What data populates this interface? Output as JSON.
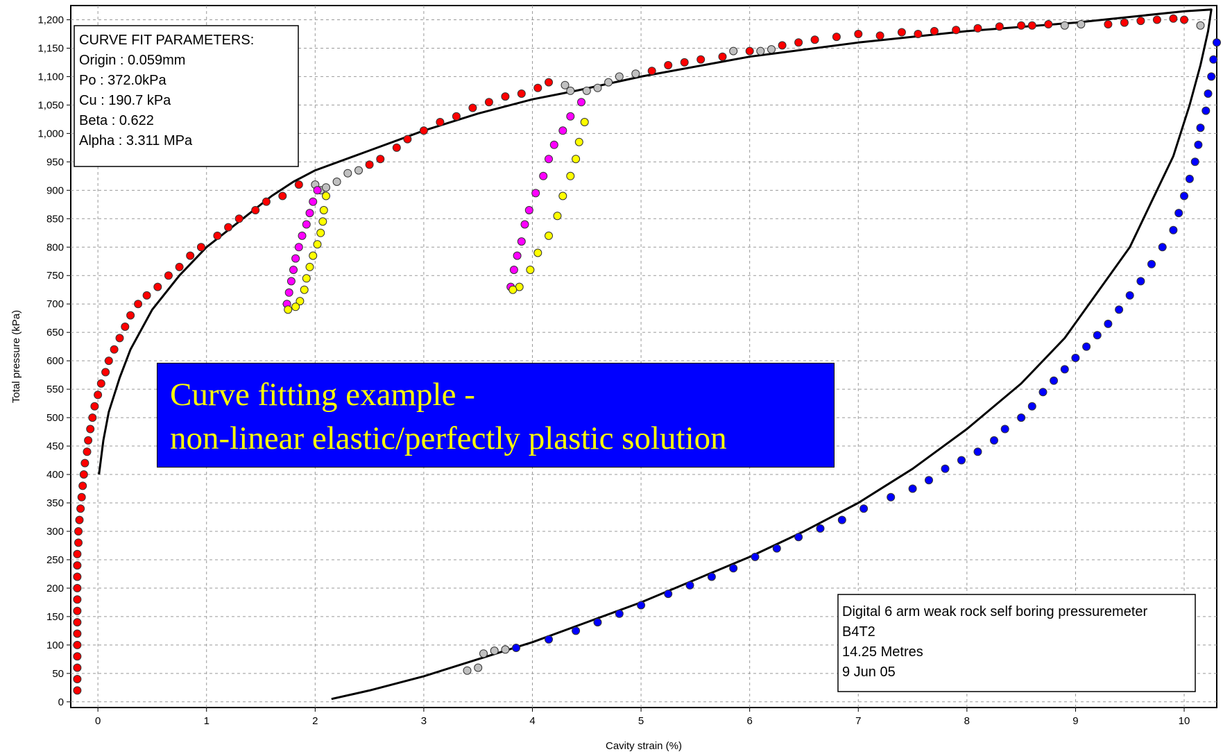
{
  "chart_data": {
    "type": "scatter",
    "title": "",
    "xlabel": "Cavity strain (%)",
    "ylabel": "Total pressure (kPa)",
    "xlim": [
      -0.25,
      10.3
    ],
    "ylim": [
      -10,
      1225
    ],
    "grid": true,
    "x_ticks": [
      0,
      1,
      2,
      3,
      4,
      5,
      6,
      7,
      8,
      9,
      10
    ],
    "y_ticks": [
      0,
      50,
      100,
      150,
      200,
      250,
      300,
      350,
      400,
      450,
      500,
      550,
      600,
      650,
      700,
      750,
      800,
      850,
      900,
      950,
      1000,
      1050,
      1100,
      1150,
      1200
    ],
    "y_tick_labels": [
      "0",
      "50",
      "100",
      "150",
      "200",
      "250",
      "300",
      "350",
      "400",
      "450",
      "500",
      "550",
      "600",
      "650",
      "700",
      "750",
      "800",
      "850",
      "900",
      "950",
      "1,000",
      "1,050",
      "1,100",
      "1,150",
      "1,200"
    ],
    "params_box": {
      "lines": [
        "CURVE FIT PARAMETERS:",
        "Origin : 0.059mm",
        "Po : 372.0kPa",
        "Cu : 190.7 kPa",
        "Beta : 0.622",
        "Alpha : 3.311 MPa"
      ],
      "position": "top-left"
    },
    "info_box": {
      "lines": [
        "Digital 6 arm weak rock self boring pressuremeter",
        "B4T2",
        "14.25 Metres",
        "9 Jun 05"
      ],
      "position": "bottom-right"
    },
    "banner": {
      "lines": [
        "Curve fitting example -",
        "non-linear elastic/perfectly plastic solution"
      ],
      "background": "#0000ff",
      "color": "#ffff00"
    },
    "fit_curve": [
      [
        0.01,
        400
      ],
      [
        0.05,
        460
      ],
      [
        0.1,
        510
      ],
      [
        0.2,
        570
      ],
      [
        0.3,
        620
      ],
      [
        0.5,
        690
      ],
      [
        0.75,
        750
      ],
      [
        1.0,
        800
      ],
      [
        1.3,
        845
      ],
      [
        1.6,
        890
      ],
      [
        1.8,
        915
      ],
      [
        2.0,
        935
      ],
      [
        2.5,
        970
      ],
      [
        3.0,
        1005
      ],
      [
        3.5,
        1035
      ],
      [
        4.0,
        1060
      ],
      [
        4.4,
        1075
      ],
      [
        5.0,
        1100
      ],
      [
        6.0,
        1135
      ],
      [
        7.0,
        1160
      ],
      [
        8.0,
        1180
      ],
      [
        9.0,
        1195
      ],
      [
        10.0,
        1215
      ],
      [
        10.25,
        1218
      ],
      [
        10.22,
        1180
      ],
      [
        10.15,
        1120
      ],
      [
        10.05,
        1050
      ],
      [
        9.9,
        960
      ],
      [
        9.7,
        880
      ],
      [
        9.5,
        800
      ],
      [
        9.2,
        720
      ],
      [
        8.9,
        640
      ],
      [
        8.5,
        560
      ],
      [
        8.0,
        480
      ],
      [
        7.5,
        410
      ],
      [
        7.0,
        350
      ],
      [
        6.5,
        300
      ],
      [
        6.0,
        255
      ],
      [
        5.5,
        215
      ],
      [
        5.0,
        175
      ],
      [
        4.5,
        140
      ],
      [
        4.0,
        105
      ],
      [
        3.5,
        75
      ],
      [
        3.0,
        45
      ],
      [
        2.5,
        20
      ],
      [
        2.15,
        5
      ]
    ],
    "series": [
      {
        "name": "",
        "color": "#ff0000",
        "points": [
          [
            -0.19,
            20
          ],
          [
            -0.19,
            40
          ],
          [
            -0.19,
            60
          ],
          [
            -0.19,
            80
          ],
          [
            -0.19,
            100
          ],
          [
            -0.19,
            120
          ],
          [
            -0.19,
            140
          ],
          [
            -0.19,
            160
          ],
          [
            -0.19,
            180
          ],
          [
            -0.19,
            200
          ],
          [
            -0.19,
            220
          ],
          [
            -0.19,
            240
          ],
          [
            -0.19,
            260
          ],
          [
            -0.18,
            280
          ],
          [
            -0.18,
            300
          ],
          [
            -0.17,
            320
          ],
          [
            -0.16,
            340
          ],
          [
            -0.15,
            360
          ],
          [
            -0.14,
            380
          ],
          [
            -0.13,
            400
          ],
          [
            -0.12,
            420
          ],
          [
            -0.1,
            440
          ],
          [
            -0.09,
            460
          ],
          [
            -0.07,
            480
          ],
          [
            -0.05,
            500
          ],
          [
            -0.03,
            520
          ],
          [
            0.0,
            540
          ],
          [
            0.03,
            560
          ],
          [
            0.07,
            580
          ],
          [
            0.1,
            600
          ],
          [
            0.15,
            620
          ],
          [
            0.2,
            640
          ],
          [
            0.25,
            660
          ],
          [
            0.3,
            680
          ],
          [
            0.37,
            700
          ],
          [
            0.45,
            715
          ],
          [
            0.55,
            730
          ],
          [
            0.65,
            750
          ],
          [
            0.75,
            765
          ],
          [
            0.85,
            785
          ],
          [
            0.95,
            800
          ],
          [
            1.1,
            820
          ],
          [
            1.2,
            835
          ],
          [
            1.3,
            850
          ],
          [
            1.45,
            865
          ],
          [
            1.55,
            880
          ],
          [
            1.7,
            890
          ],
          [
            1.85,
            910
          ],
          [
            2.5,
            945
          ],
          [
            2.6,
            955
          ],
          [
            2.75,
            975
          ],
          [
            2.85,
            990
          ],
          [
            3.0,
            1005
          ],
          [
            3.15,
            1020
          ],
          [
            3.3,
            1030
          ],
          [
            3.45,
            1045
          ],
          [
            3.6,
            1055
          ],
          [
            3.75,
            1065
          ],
          [
            3.9,
            1070
          ],
          [
            4.05,
            1080
          ],
          [
            4.15,
            1090
          ],
          [
            5.1,
            1110
          ],
          [
            5.25,
            1120
          ],
          [
            5.4,
            1125
          ],
          [
            5.55,
            1130
          ],
          [
            5.75,
            1135
          ],
          [
            6.0,
            1145
          ],
          [
            6.3,
            1155
          ],
          [
            6.45,
            1160
          ],
          [
            6.6,
            1165
          ],
          [
            6.8,
            1170
          ],
          [
            7.0,
            1175
          ],
          [
            7.2,
            1172
          ],
          [
            7.4,
            1178
          ],
          [
            7.55,
            1175
          ],
          [
            7.7,
            1180
          ],
          [
            7.9,
            1182
          ],
          [
            8.1,
            1185
          ],
          [
            8.3,
            1188
          ],
          [
            8.5,
            1190
          ],
          [
            8.6,
            1190
          ],
          [
            8.75,
            1192
          ],
          [
            9.3,
            1192
          ],
          [
            9.45,
            1195
          ],
          [
            9.6,
            1198
          ],
          [
            9.75,
            1200
          ],
          [
            9.9,
            1202
          ],
          [
            10.0,
            1200
          ]
        ]
      },
      {
        "name": "",
        "color": "#c0c0c0",
        "points": [
          [
            2.0,
            910
          ],
          [
            2.05,
            900
          ],
          [
            2.1,
            905
          ],
          [
            2.2,
            915
          ],
          [
            2.3,
            930
          ],
          [
            2.4,
            935
          ],
          [
            4.3,
            1085
          ],
          [
            4.35,
            1075
          ],
          [
            4.5,
            1075
          ],
          [
            4.6,
            1080
          ],
          [
            4.7,
            1090
          ],
          [
            4.8,
            1100
          ],
          [
            4.95,
            1105
          ],
          [
            5.85,
            1145
          ],
          [
            6.1,
            1145
          ],
          [
            6.2,
            1148
          ],
          [
            8.9,
            1190
          ],
          [
            9.05,
            1192
          ],
          [
            10.15,
            1190
          ],
          [
            3.4,
            55
          ],
          [
            3.5,
            60
          ],
          [
            3.55,
            85
          ],
          [
            3.65,
            90
          ],
          [
            3.75,
            92
          ]
        ]
      },
      {
        "name": "",
        "color": "#ff00ff",
        "points": [
          [
            2.02,
            900
          ],
          [
            1.98,
            880
          ],
          [
            1.95,
            860
          ],
          [
            1.92,
            840
          ],
          [
            1.88,
            820
          ],
          [
            1.85,
            800
          ],
          [
            1.82,
            780
          ],
          [
            1.8,
            760
          ],
          [
            1.78,
            740
          ],
          [
            1.76,
            720
          ],
          [
            1.74,
            700
          ],
          [
            4.45,
            1055
          ],
          [
            4.35,
            1030
          ],
          [
            4.28,
            1005
          ],
          [
            4.2,
            980
          ],
          [
            4.15,
            955
          ],
          [
            4.1,
            925
          ],
          [
            4.03,
            895
          ],
          [
            3.97,
            865
          ],
          [
            3.93,
            840
          ],
          [
            3.9,
            810
          ],
          [
            3.86,
            785
          ],
          [
            3.83,
            760
          ],
          [
            3.8,
            730
          ]
        ]
      },
      {
        "name": "",
        "color": "#ffff00",
        "points": [
          [
            2.1,
            890
          ],
          [
            2.08,
            865
          ],
          [
            2.07,
            845
          ],
          [
            2.05,
            825
          ],
          [
            2.02,
            805
          ],
          [
            1.98,
            785
          ],
          [
            1.95,
            765
          ],
          [
            1.92,
            745
          ],
          [
            1.9,
            725
          ],
          [
            1.86,
            705
          ],
          [
            1.82,
            695
          ],
          [
            1.75,
            690
          ],
          [
            4.48,
            1020
          ],
          [
            4.43,
            985
          ],
          [
            4.4,
            955
          ],
          [
            4.35,
            925
          ],
          [
            4.28,
            890
          ],
          [
            4.23,
            855
          ],
          [
            4.15,
            820
          ],
          [
            4.05,
            790
          ],
          [
            3.98,
            760
          ],
          [
            3.88,
            730
          ],
          [
            3.82,
            725
          ]
        ]
      },
      {
        "name": "",
        "color": "#0000ff",
        "points": [
          [
            3.85,
            95
          ],
          [
            4.15,
            110
          ],
          [
            4.4,
            125
          ],
          [
            4.6,
            140
          ],
          [
            4.8,
            155
          ],
          [
            5.0,
            170
          ],
          [
            5.25,
            190
          ],
          [
            5.45,
            205
          ],
          [
            5.65,
            220
          ],
          [
            5.85,
            235
          ],
          [
            6.05,
            255
          ],
          [
            6.25,
            270
          ],
          [
            6.45,
            290
          ],
          [
            6.65,
            305
          ],
          [
            6.85,
            320
          ],
          [
            7.05,
            340
          ],
          [
            7.3,
            360
          ],
          [
            7.5,
            375
          ],
          [
            7.65,
            390
          ],
          [
            7.8,
            410
          ],
          [
            7.95,
            425
          ],
          [
            8.1,
            440
          ],
          [
            8.25,
            460
          ],
          [
            8.35,
            480
          ],
          [
            8.5,
            500
          ],
          [
            8.6,
            520
          ],
          [
            8.7,
            545
          ],
          [
            8.8,
            565
          ],
          [
            8.9,
            585
          ],
          [
            9.0,
            605
          ],
          [
            9.1,
            625
          ],
          [
            9.2,
            645
          ],
          [
            9.3,
            665
          ],
          [
            9.4,
            690
          ],
          [
            9.5,
            715
          ],
          [
            9.6,
            740
          ],
          [
            9.7,
            770
          ],
          [
            9.8,
            800
          ],
          [
            9.9,
            830
          ],
          [
            9.95,
            860
          ],
          [
            10.0,
            890
          ],
          [
            10.05,
            920
          ],
          [
            10.1,
            950
          ],
          [
            10.13,
            980
          ],
          [
            10.15,
            1010
          ],
          [
            10.2,
            1040
          ],
          [
            10.22,
            1070
          ],
          [
            10.25,
            1100
          ],
          [
            10.27,
            1130
          ],
          [
            10.3,
            1160
          ]
        ]
      }
    ]
  }
}
